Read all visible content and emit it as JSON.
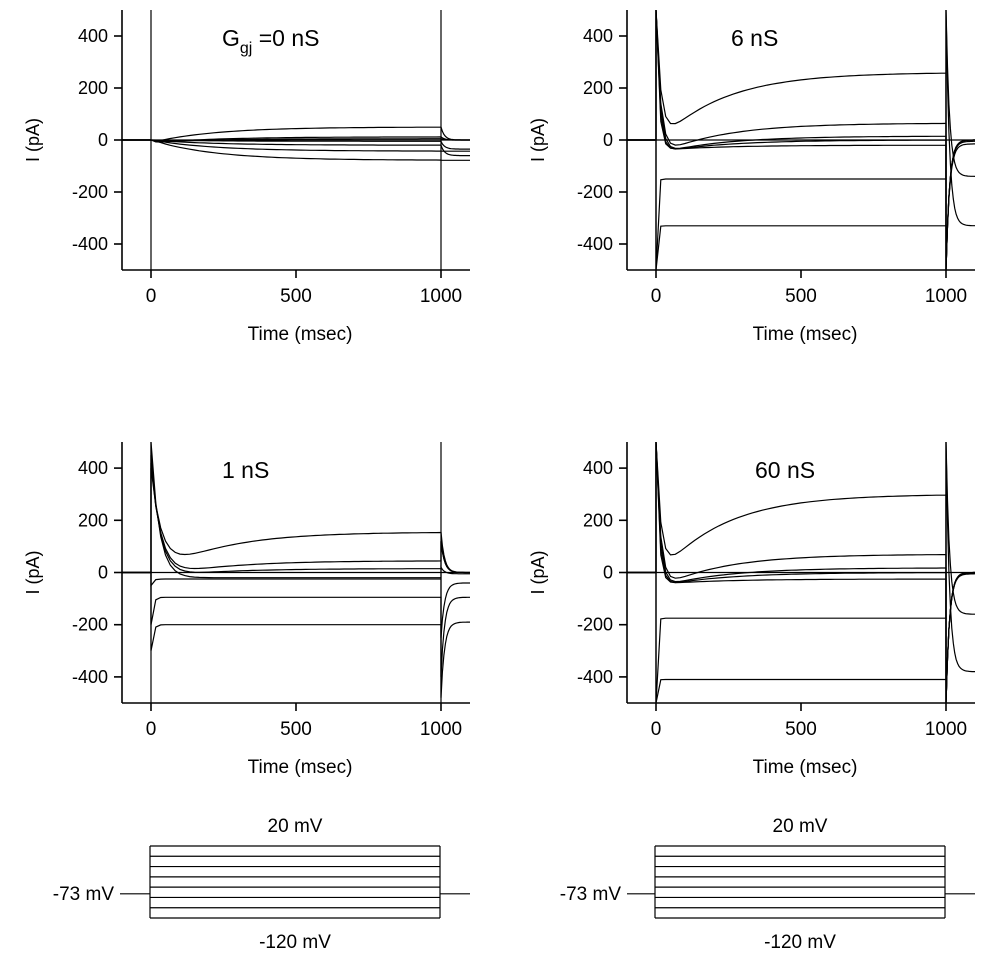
{
  "chart_data": [
    {
      "type": "line",
      "title": "G",
      "title_sub": "gj",
      "title_rest": " =0 nS",
      "xlabel": "Time (msec)",
      "ylabel": "I (pA)",
      "xlim": [
        -100,
        1100
      ],
      "ylim": [
        -500,
        500
      ],
      "xticks": [
        "0",
        "500",
        "1000"
      ],
      "yticks": [
        "400",
        "200",
        "0",
        "-200",
        "-400"
      ],
      "step_on_ms": 0,
      "step_off_ms": 1000,
      "series": [
        {
          "peak": 0,
          "steady": -78,
          "tail": -78,
          "tail_end": -78,
          "dip": 0,
          "dip_t": 40
        },
        {
          "peak": 0,
          "steady": -43,
          "tail": -43,
          "tail_end": -43,
          "dip": 0,
          "dip_t": 40
        },
        {
          "peak": 0,
          "steady": -20,
          "tail": -20,
          "tail_end": -60,
          "dip": 0,
          "dip_t": 40
        },
        {
          "peak": 0,
          "steady": -5,
          "tail": -5,
          "tail_end": -35,
          "dip": 0,
          "dip_t": 40
        },
        {
          "peak": 0,
          "steady": 5,
          "tail": 5,
          "tail_end": 0,
          "dip": -8,
          "dip_t": 40
        },
        {
          "peak": 0,
          "steady": 12,
          "tail": 12,
          "tail_end": 0,
          "dip": -12,
          "dip_t": 40
        },
        {
          "peak": 0,
          "steady": 50,
          "tail": 50,
          "tail_end": 0,
          "dip": -10,
          "dip_t": 40
        }
      ]
    },
    {
      "type": "line",
      "title": "6 nS",
      "xlabel": "Time (msec)",
      "ylabel": "I (pA)",
      "xlim": [
        -100,
        1100
      ],
      "ylim": [
        -500,
        500
      ],
      "xticks": [
        "0",
        "500",
        "1000"
      ],
      "yticks": [
        "400",
        "200",
        "0",
        "-200",
        "-400"
      ],
      "step_on_ms": 0,
      "step_off_ms": 1000,
      "series": [
        {
          "peak": -500,
          "steady": -330,
          "tail": 500,
          "tail_end": -330,
          "dip": -330,
          "dip_t": 10
        },
        {
          "peak": -500,
          "steady": -150,
          "tail": 500,
          "tail_end": -140,
          "dip": -150,
          "dip_t": 10
        },
        {
          "peak": 500,
          "steady": -20,
          "tail": -500,
          "tail_end": -15,
          "dip": -40,
          "dip_t": 30
        },
        {
          "peak": 500,
          "steady": 0,
          "tail": -500,
          "tail_end": -5,
          "dip": -50,
          "dip_t": 35
        },
        {
          "peak": 500,
          "steady": 15,
          "tail": -500,
          "tail_end": 0,
          "dip": -55,
          "dip_t": 40
        },
        {
          "peak": 500,
          "steady": 65,
          "tail": -500,
          "tail_end": 0,
          "dip": -60,
          "dip_t": 45
        },
        {
          "peak": 500,
          "steady": 260,
          "tail": -500,
          "tail_end": 0,
          "dip": -20,
          "dip_t": 50
        }
      ]
    },
    {
      "type": "line",
      "title": "1 nS",
      "xlabel": "Time (msec)",
      "ylabel": "I (pA)",
      "xlim": [
        -100,
        1100
      ],
      "ylim": [
        -500,
        500
      ],
      "xticks": [
        "0",
        "500",
        "1000"
      ],
      "yticks": [
        "400",
        "200",
        "0",
        "-200",
        "-400"
      ],
      "step_on_ms": 0,
      "step_off_ms": 1000,
      "series": [
        {
          "peak": -300,
          "steady": -200,
          "tail": -480,
          "tail_end": -190,
          "dip": -200,
          "dip_t": 20
        },
        {
          "peak": -200,
          "steady": -95,
          "tail": -400,
          "tail_end": -95,
          "dip": -95,
          "dip_t": 20
        },
        {
          "peak": -50,
          "steady": -25,
          "tail": -250,
          "tail_end": -40,
          "dip": -25,
          "dip_t": 20
        },
        {
          "peak": 500,
          "steady": -20,
          "tail": 20,
          "tail_end": -5,
          "dip": -20,
          "dip_t": 80
        },
        {
          "peak": 450,
          "steady": 15,
          "tail": 120,
          "tail_end": 0,
          "dip": -20,
          "dip_t": 90
        },
        {
          "peak": 420,
          "steady": 45,
          "tail": 120,
          "tail_end": 0,
          "dip": -25,
          "dip_t": 100
        },
        {
          "peak": 400,
          "steady": 155,
          "tail": 155,
          "tail_end": 0,
          "dip": -20,
          "dip_t": 110
        }
      ]
    },
    {
      "type": "line",
      "title": "60 nS",
      "xlabel": "Time (msec)",
      "ylabel": "I (pA)",
      "xlim": [
        -100,
        1100
      ],
      "ylim": [
        -500,
        500
      ],
      "xticks": [
        "0",
        "500",
        "1000"
      ],
      "yticks": [
        "400",
        "200",
        "0",
        "-200",
        "-400"
      ],
      "step_on_ms": 0,
      "step_off_ms": 1000,
      "series": [
        {
          "peak": -500,
          "steady": -410,
          "tail": 500,
          "tail_end": -380,
          "dip": -410,
          "dip_t": 10
        },
        {
          "peak": -500,
          "steady": -175,
          "tail": 500,
          "tail_end": -160,
          "dip": -175,
          "dip_t": 10
        },
        {
          "peak": 500,
          "steady": -25,
          "tail": -500,
          "tail_end": -5,
          "dip": -45,
          "dip_t": 30
        },
        {
          "peak": 500,
          "steady": 0,
          "tail": -500,
          "tail_end": -3,
          "dip": -55,
          "dip_t": 35
        },
        {
          "peak": 500,
          "steady": 18,
          "tail": -500,
          "tail_end": 0,
          "dip": -60,
          "dip_t": 40
        },
        {
          "peak": 500,
          "steady": 70,
          "tail": -500,
          "tail_end": 0,
          "dip": -65,
          "dip_t": 45
        },
        {
          "peak": 500,
          "steady": 300,
          "tail": -500,
          "tail_end": 0,
          "dip": -25,
          "dip_t": 50
        }
      ]
    }
  ],
  "protocol": {
    "top_label": "20 mV",
    "bottom_label": "-120 mV",
    "holding_label": "-73 mV",
    "levels_mV": [
      20,
      0,
      -20,
      -40,
      -60,
      -80,
      -100,
      -120
    ],
    "holding_mV": -73
  }
}
